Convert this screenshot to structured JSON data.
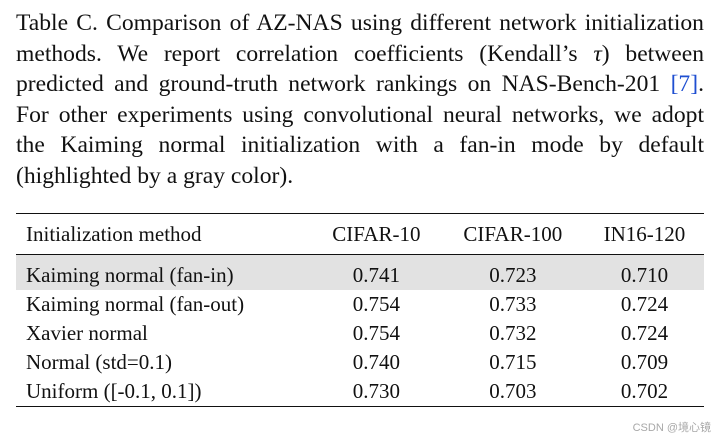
{
  "caption": {
    "label": "Table C.",
    "text_before_tau": " Comparison of AZ-NAS using different network initialization methods. We report correlation coefficients (Kendall’s ",
    "tau": "τ",
    "text_after_tau": ") between predicted and ground-truth network rankings on NAS-Bench-201 ",
    "citation": "[7]",
    "text_end": ". For other experiments using convolutional neural networks, we adopt the Kaiming normal initialization with a fan-in mode by default (highlighted by a gray color)."
  },
  "table": {
    "headers": [
      "Initialization method",
      "CIFAR-10",
      "CIFAR-100",
      "IN16-120"
    ],
    "rows": [
      {
        "method": "Kaiming normal (fan-in)",
        "cifar10": "0.741",
        "cifar100": "0.723",
        "in16": "0.710",
        "highlighted": true
      },
      {
        "method": "Kaiming normal (fan-out)",
        "cifar10": "0.754",
        "cifar100": "0.733",
        "in16": "0.724",
        "highlighted": false
      },
      {
        "method": "Xavier normal",
        "cifar10": "0.754",
        "cifar100": "0.732",
        "in16": "0.724",
        "highlighted": false
      },
      {
        "method": "Normal (std=0.1)",
        "cifar10": "0.740",
        "cifar100": "0.715",
        "in16": "0.709",
        "highlighted": false
      },
      {
        "method": "Uniform ([-0.1, 0.1])",
        "cifar10": "0.730",
        "cifar100": "0.703",
        "in16": "0.702",
        "highlighted": false
      }
    ]
  },
  "colors": {
    "citation": "#1f4fd1",
    "highlight": "#e2e2e2"
  },
  "watermark": "CSDN @境心镜"
}
